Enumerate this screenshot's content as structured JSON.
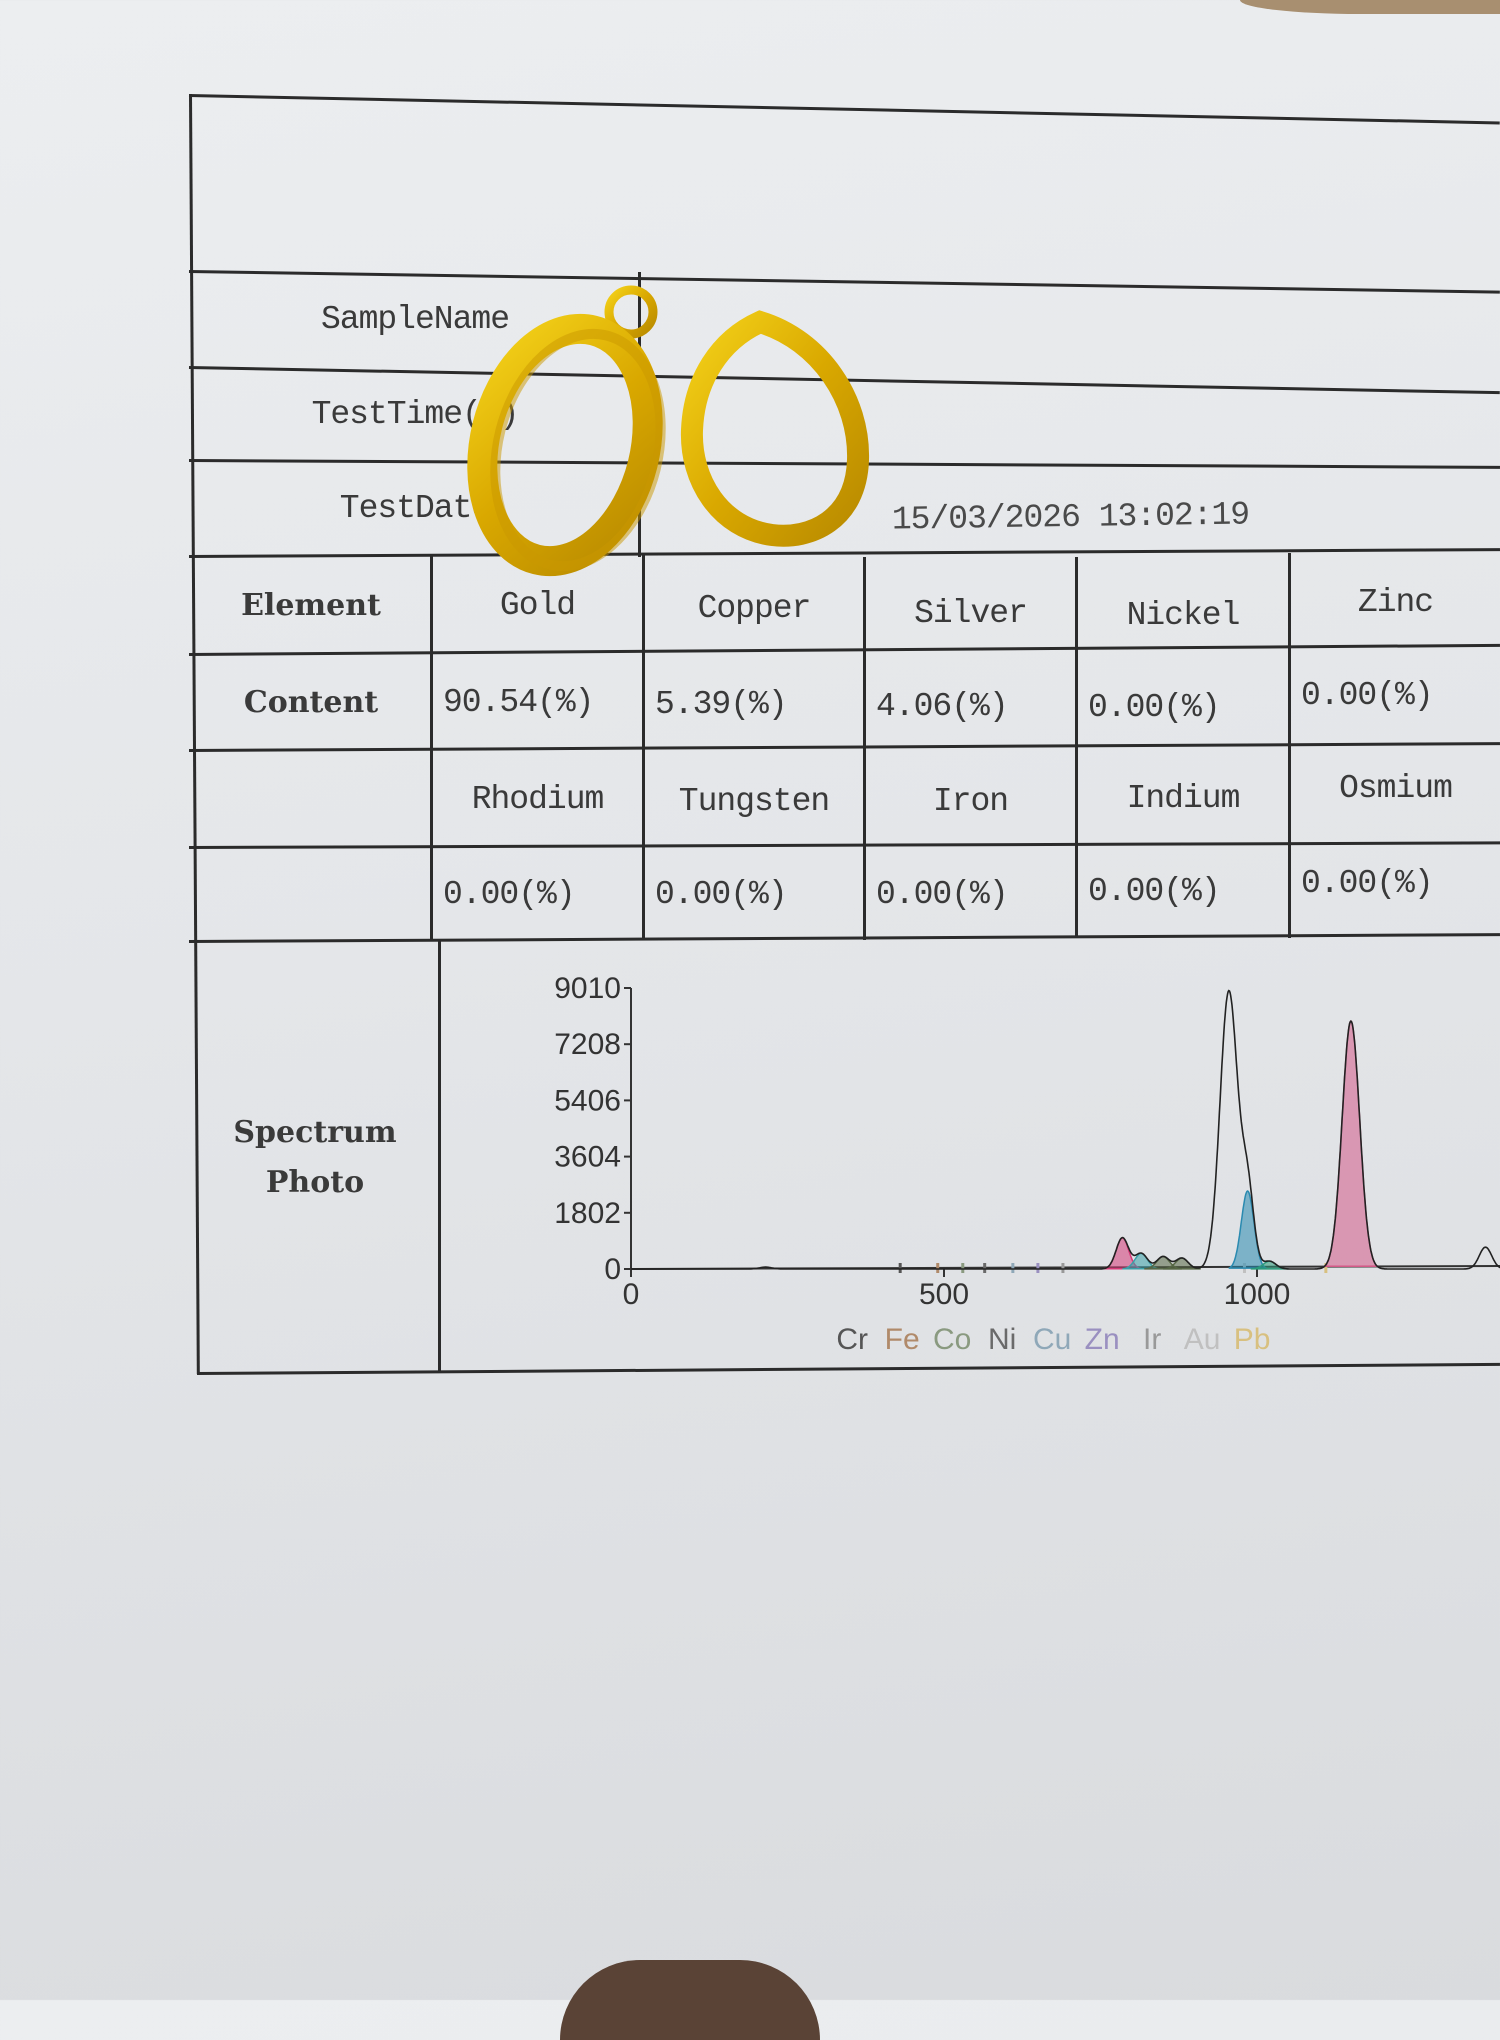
{
  "report": {
    "header_rows": [
      {
        "label": "SampleName",
        "value": ""
      },
      {
        "label": "TestTime(s)",
        "value": ""
      },
      {
        "label": "TestDate",
        "value": "15/03/2026 13:02:19"
      }
    ],
    "element_label": "Element",
    "content_label": "Content",
    "elements_row1": [
      {
        "name": "Gold",
        "content": "90.54(%)"
      },
      {
        "name": "Copper",
        "content": "5.39(%)"
      },
      {
        "name": "Silver",
        "content": "4.06(%)"
      },
      {
        "name": "Nickel",
        "content": "0.00(%)"
      },
      {
        "name": "Zinc",
        "content": "0.00(%)"
      }
    ],
    "elements_row2": [
      {
        "name": "Rhodium",
        "content": "0.00(%)"
      },
      {
        "name": "Tungsten",
        "content": "0.00(%)"
      },
      {
        "name": "Iron",
        "content": "0.00(%)"
      },
      {
        "name": "Indium",
        "content": "0.00(%)"
      },
      {
        "name": "Osmium",
        "content": "0.00(%)"
      }
    ],
    "spectrum_label_line1": "Spectrum",
    "spectrum_label_line2": "Photo"
  },
  "chart_data": {
    "type": "line",
    "ylim": [
      0,
      9010
    ],
    "yticks": [
      "0",
      "1802",
      "3604",
      "5406",
      "7208",
      "9010"
    ],
    "xticks": [
      "0",
      "500",
      "1000"
    ],
    "xlim": [
      0,
      1400
    ],
    "element_markers": [
      {
        "label": "Cr",
        "x": 430,
        "color": "#555555"
      },
      {
        "label": "Fe",
        "x": 490,
        "color": "#b08a6a"
      },
      {
        "label": "Co",
        "x": 530,
        "color": "#8a9a80"
      },
      {
        "label": "Ni",
        "x": 565,
        "color": "#6a6a6a"
      },
      {
        "label": "Cu",
        "x": 610,
        "color": "#8fa8b8"
      },
      {
        "label": "Zn",
        "x": 650,
        "color": "#9a90c0"
      },
      {
        "label": "Ir",
        "x": 690,
        "color": "#999999"
      },
      {
        "label": "Au",
        "x": 980,
        "color": "#c0c0c0"
      },
      {
        "label": "Pb",
        "x": 1110,
        "color": "#d8c080"
      }
    ],
    "peaks": [
      {
        "x": 215,
        "height": 60,
        "color": "#333333"
      },
      {
        "x": 785,
        "height": 1000,
        "color": "#d63a78"
      },
      {
        "x": 815,
        "height": 500,
        "color": "#3aa0a8"
      },
      {
        "x": 850,
        "height": 400,
        "color": "#556644"
      },
      {
        "x": 880,
        "height": 350,
        "color": "#556644"
      },
      {
        "x": 955,
        "height": 8900,
        "color": "#222222"
      },
      {
        "x": 985,
        "height": 2500,
        "color": "#2a8ab0"
      },
      {
        "x": 1020,
        "height": 250,
        "color": "#2a9a7a"
      },
      {
        "x": 1150,
        "height": 7950,
        "color": "#d45a88"
      },
      {
        "x": 1365,
        "height": 700,
        "color": "#222222"
      }
    ]
  }
}
